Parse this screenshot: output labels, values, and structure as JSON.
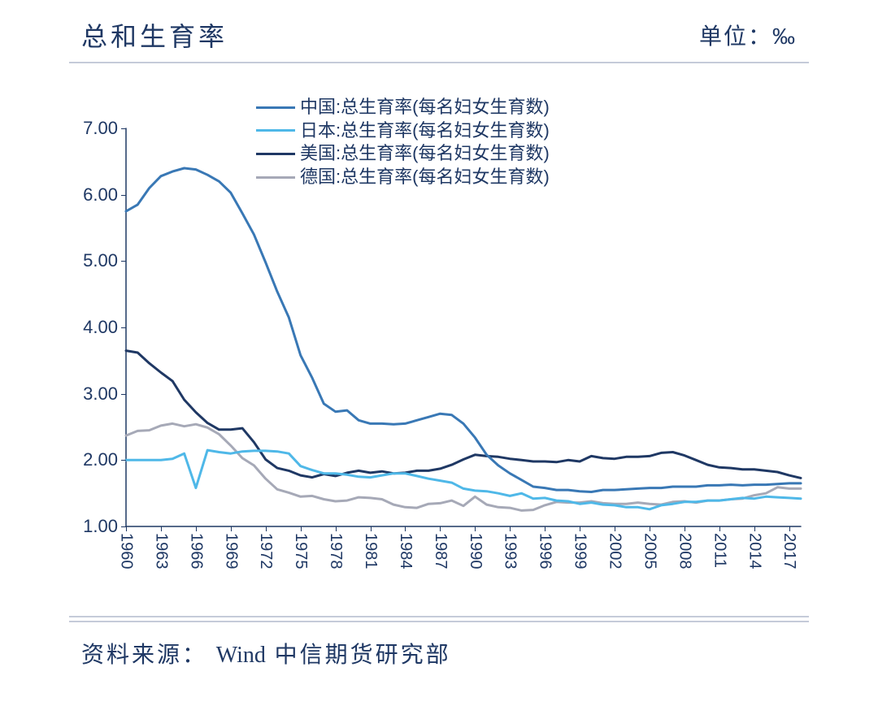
{
  "header": {
    "title": "总和生育率",
    "unit_label": "单位：‰"
  },
  "source": {
    "prefix": "资料来源：",
    "vendor": "Wind",
    "org": " 中信期货研究部"
  },
  "chart": {
    "type": "line",
    "background_color": "#ffffff",
    "axis_color": "#1f3864",
    "text_color": "#1f3864",
    "rule_color": "#c5cbd9",
    "line_width": 3,
    "title_fontsize": 32,
    "label_fontsize": 22,
    "tick_fontsize": 22,
    "ylim": [
      1.0,
      7.0
    ],
    "ytick_step": 1.0,
    "yticks": [
      "1.00",
      "2.00",
      "3.00",
      "4.00",
      "5.00",
      "6.00",
      "7.00"
    ],
    "xlim": [
      1960,
      2018
    ],
    "xticks": [
      1960,
      1963,
      1966,
      1969,
      1972,
      1975,
      1978,
      1981,
      1984,
      1987,
      1990,
      1993,
      1996,
      1999,
      2002,
      2005,
      2008,
      2011,
      2014,
      2017
    ],
    "x_raw": [
      1960,
      1961,
      1962,
      1963,
      1964,
      1965,
      1966,
      1967,
      1968,
      1969,
      1970,
      1971,
      1972,
      1973,
      1974,
      1975,
      1976,
      1977,
      1978,
      1979,
      1980,
      1981,
      1982,
      1983,
      1984,
      1985,
      1986,
      1987,
      1988,
      1989,
      1990,
      1991,
      1992,
      1993,
      1994,
      1995,
      1996,
      1997,
      1998,
      1999,
      2000,
      2001,
      2002,
      2003,
      2004,
      2005,
      2006,
      2007,
      2008,
      2009,
      2010,
      2011,
      2012,
      2013,
      2014,
      2015,
      2016,
      2017,
      2018
    ],
    "legend": {
      "position": "top-center",
      "items": [
        {
          "key": "china",
          "label": "中国:总生育率(每名妇女生育数)"
        },
        {
          "key": "japan",
          "label": "日本:总生育率(每名妇女生育数)"
        },
        {
          "key": "usa",
          "label": "美国:总生育率(每名妇女生育数)"
        },
        {
          "key": "germany",
          "label": "德国:总生育率(每名妇女生育数)"
        }
      ]
    },
    "series": {
      "china": {
        "color": "#3978b5",
        "values": [
          5.75,
          5.85,
          6.1,
          6.28,
          6.35,
          6.4,
          6.38,
          6.3,
          6.2,
          6.03,
          5.72,
          5.4,
          4.98,
          4.54,
          4.15,
          3.58,
          3.24,
          2.85,
          2.73,
          2.75,
          2.6,
          2.55,
          2.55,
          2.54,
          2.55,
          2.6,
          2.65,
          2.7,
          2.68,
          2.55,
          2.34,
          2.08,
          1.92,
          1.8,
          1.7,
          1.6,
          1.58,
          1.55,
          1.55,
          1.53,
          1.52,
          1.55,
          1.55,
          1.56,
          1.57,
          1.58,
          1.58,
          1.6,
          1.6,
          1.6,
          1.62,
          1.62,
          1.63,
          1.62,
          1.63,
          1.63,
          1.64,
          1.65,
          1.65
        ]
      },
      "japan": {
        "color": "#4fb8e8",
        "values": [
          2.0,
          2.0,
          2.0,
          2.0,
          2.02,
          2.1,
          1.58,
          2.15,
          2.12,
          2.1,
          2.13,
          2.14,
          2.14,
          2.13,
          2.1,
          1.91,
          1.85,
          1.8,
          1.8,
          1.78,
          1.75,
          1.74,
          1.77,
          1.8,
          1.8,
          1.76,
          1.72,
          1.69,
          1.66,
          1.57,
          1.54,
          1.53,
          1.5,
          1.46,
          1.5,
          1.42,
          1.43,
          1.39,
          1.38,
          1.34,
          1.36,
          1.33,
          1.32,
          1.29,
          1.29,
          1.26,
          1.32,
          1.34,
          1.37,
          1.37,
          1.39,
          1.39,
          1.41,
          1.43,
          1.42,
          1.45,
          1.44,
          1.43,
          1.42
        ]
      },
      "usa": {
        "color": "#1f3864",
        "values": [
          3.65,
          3.62,
          3.46,
          3.32,
          3.19,
          2.91,
          2.72,
          2.56,
          2.46,
          2.46,
          2.48,
          2.27,
          2.01,
          1.88,
          1.84,
          1.77,
          1.74,
          1.79,
          1.76,
          1.81,
          1.84,
          1.81,
          1.83,
          1.8,
          1.81,
          1.84,
          1.84,
          1.87,
          1.93,
          2.01,
          2.08,
          2.06,
          2.05,
          2.02,
          2.0,
          1.98,
          1.98,
          1.97,
          2.0,
          1.98,
          2.06,
          2.03,
          2.02,
          2.05,
          2.05,
          2.06,
          2.11,
          2.12,
          2.07,
          2.0,
          1.93,
          1.89,
          1.88,
          1.86,
          1.86,
          1.84,
          1.82,
          1.77,
          1.73
        ]
      },
      "germany": {
        "color": "#a6a9b7",
        "values": [
          2.37,
          2.44,
          2.45,
          2.52,
          2.55,
          2.51,
          2.54,
          2.49,
          2.39,
          2.22,
          2.03,
          1.92,
          1.72,
          1.56,
          1.51,
          1.45,
          1.46,
          1.41,
          1.38,
          1.39,
          1.44,
          1.43,
          1.41,
          1.33,
          1.29,
          1.28,
          1.34,
          1.35,
          1.39,
          1.31,
          1.45,
          1.33,
          1.29,
          1.28,
          1.24,
          1.25,
          1.32,
          1.37,
          1.36,
          1.36,
          1.38,
          1.35,
          1.34,
          1.34,
          1.36,
          1.34,
          1.33,
          1.37,
          1.38,
          1.36,
          1.39,
          1.39,
          1.41,
          1.42,
          1.47,
          1.5,
          1.59,
          1.57,
          1.57
        ]
      }
    }
  }
}
